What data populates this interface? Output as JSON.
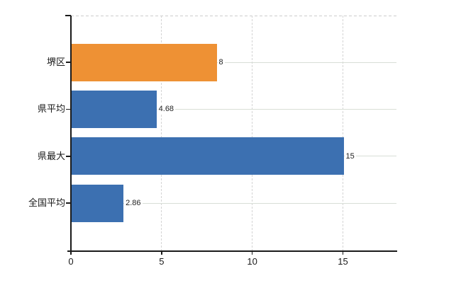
{
  "chart_data": {
    "type": "bar",
    "orientation": "horizontal",
    "title": "",
    "xlabel": "",
    "ylabel": "",
    "categories": [
      "堺区",
      "県平均",
      "県最大",
      "全国平均"
    ],
    "values": [
      8,
      4.68,
      15,
      2.86
    ],
    "value_labels": [
      "8",
      "4.68",
      "15",
      "2.86"
    ],
    "bar_colors": [
      "#EE9134",
      "#3C70B1",
      "#3C70B1",
      "#3C70B1"
    ],
    "highlighted_category": "堺区",
    "xlim": [
      0,
      17.95
    ],
    "xticks": [
      0,
      5,
      10,
      15
    ],
    "xtick_labels": [
      "0",
      "5",
      "10",
      "15"
    ],
    "grid": true,
    "legend": "none",
    "colors": {
      "bar_default": "#3C70B1",
      "bar_highlight": "#EE9134",
      "axis": "#1a1a1a",
      "grid_vertical": "#d4d4d4",
      "grid_horizontal": "#d8ded6",
      "text": "#1f1f1f",
      "background": "#ffffff"
    }
  }
}
